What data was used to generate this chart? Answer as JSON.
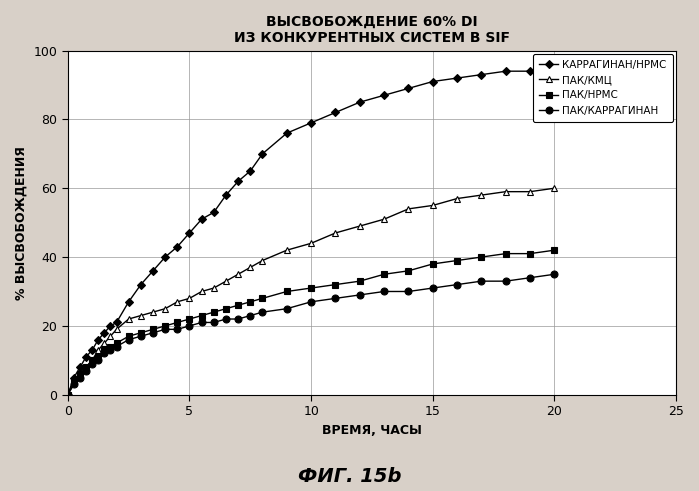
{
  "title": "ВЫСВОБОЖДЕНИЕ 60% DI\nИЗ КОНКУРЕНТНЫХ СИСТЕМ В SIF",
  "xlabel": "ВРЕМЯ, ЧАСЫ",
  "ylabel": "% ВЫСВОБОЖДЕНИЯ",
  "xlim": [
    0,
    25
  ],
  "ylim": [
    0,
    100
  ],
  "xticks": [
    0,
    5,
    10,
    15,
    20,
    25
  ],
  "yticks": [
    0,
    20,
    40,
    60,
    80,
    100
  ],
  "fig_caption": "ФИГ. 15b",
  "series": [
    {
      "label": "КАРРАГИНАН/НРМС",
      "color": "#000000",
      "marker": "D",
      "marker_face": "#000000",
      "marker_size": 4,
      "x": [
        0,
        0.25,
        0.5,
        0.75,
        1.0,
        1.25,
        1.5,
        1.75,
        2.0,
        2.5,
        3.0,
        3.5,
        4.0,
        4.5,
        5.0,
        5.5,
        6.0,
        6.5,
        7.0,
        7.5,
        8.0,
        9.0,
        10.0,
        11.0,
        12.0,
        13.0,
        14.0,
        15.0,
        16.0,
        17.0,
        18.0,
        19.0,
        20.0
      ],
      "y": [
        0,
        5,
        8,
        11,
        13,
        16,
        18,
        20,
        21,
        27,
        32,
        36,
        40,
        43,
        47,
        51,
        53,
        58,
        62,
        65,
        70,
        76,
        79,
        82,
        85,
        87,
        89,
        91,
        92,
        93,
        94,
        94,
        95
      ]
    },
    {
      "label": "ПАК/КМЦ",
      "color": "#000000",
      "marker": "^",
      "marker_face": "white",
      "marker_size": 5,
      "x": [
        0,
        0.25,
        0.5,
        0.75,
        1.0,
        1.25,
        1.5,
        1.75,
        2.0,
        2.5,
        3.0,
        3.5,
        4.0,
        4.5,
        5.0,
        5.5,
        6.0,
        6.5,
        7.0,
        7.5,
        8.0,
        9.0,
        10.0,
        11.0,
        12.0,
        13.0,
        14.0,
        15.0,
        16.0,
        17.0,
        18.0,
        19.0,
        20.0
      ],
      "y": [
        0,
        4,
        6,
        8,
        10,
        13,
        15,
        17,
        19,
        22,
        23,
        24,
        25,
        27,
        28,
        30,
        31,
        33,
        35,
        37,
        39,
        42,
        44,
        47,
        49,
        51,
        54,
        55,
        57,
        58,
        59,
        59,
        60
      ]
    },
    {
      "label": "ПАК/НРМС",
      "color": "#000000",
      "marker": "s",
      "marker_face": "#000000",
      "marker_size": 4,
      "x": [
        0,
        0.25,
        0.5,
        0.75,
        1.0,
        1.25,
        1.5,
        1.75,
        2.0,
        2.5,
        3.0,
        3.5,
        4.0,
        4.5,
        5.0,
        5.5,
        6.0,
        6.5,
        7.0,
        7.5,
        8.0,
        9.0,
        10.0,
        11.0,
        12.0,
        13.0,
        14.0,
        15.0,
        16.0,
        17.0,
        18.0,
        19.0,
        20.0
      ],
      "y": [
        0,
        4,
        6,
        8,
        10,
        11,
        13,
        14,
        15,
        17,
        18,
        19,
        20,
        21,
        22,
        23,
        24,
        25,
        26,
        27,
        28,
        30,
        31,
        32,
        33,
        35,
        36,
        38,
        39,
        40,
        41,
        41,
        42
      ]
    },
    {
      "label": "ПАК/КАРРАГИНАН",
      "color": "#000000",
      "marker": "o",
      "marker_face": "#000000",
      "marker_size": 5,
      "x": [
        0,
        0.25,
        0.5,
        0.75,
        1.0,
        1.25,
        1.5,
        1.75,
        2.0,
        2.5,
        3.0,
        3.5,
        4.0,
        4.5,
        5.0,
        5.5,
        6.0,
        6.5,
        7.0,
        7.5,
        8.0,
        9.0,
        10.0,
        11.0,
        12.0,
        13.0,
        14.0,
        15.0,
        16.0,
        17.0,
        18.0,
        19.0,
        20.0
      ],
      "y": [
        0,
        3,
        5,
        7,
        9,
        10,
        12,
        13,
        14,
        16,
        17,
        18,
        19,
        19,
        20,
        21,
        21,
        22,
        22,
        23,
        24,
        25,
        27,
        28,
        29,
        30,
        30,
        31,
        32,
        33,
        33,
        34,
        35
      ]
    }
  ],
  "fig_bg_color": "#d8d0c8",
  "plot_bg_color": "#ffffff",
  "grid_color": "#999999",
  "title_fontsize": 10,
  "axis_label_fontsize": 9,
  "tick_fontsize": 9,
  "legend_fontsize": 7.5,
  "caption_fontsize": 14
}
